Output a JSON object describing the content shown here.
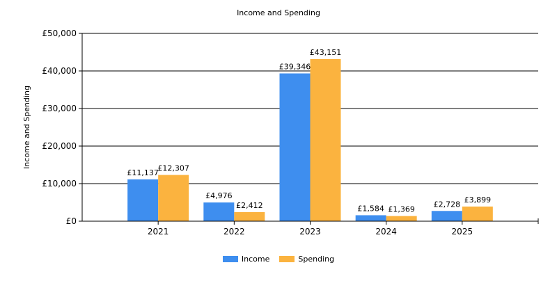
{
  "chart_data": {
    "type": "bar",
    "title": "Income and Spending",
    "ylabel": "Income and Spending",
    "xlabel": "",
    "categories": [
      "2021",
      "2022",
      "2023",
      "2024",
      "2025"
    ],
    "series": [
      {
        "name": "Income",
        "color": "#3e8eef",
        "values": [
          11137,
          4976,
          39346,
          1584,
          2728
        ],
        "labels": [
          "£11,137",
          "£4,976",
          "£39,346",
          "£1,584",
          "£2,728"
        ]
      },
      {
        "name": "Spending",
        "color": "#fbb33f",
        "values": [
          12307,
          2412,
          43151,
          1369,
          3899
        ],
        "labels": [
          "£12,307",
          "£2,412",
          "£43,151",
          "£1,369",
          "£3,899"
        ]
      }
    ],
    "ylim": [
      0,
      50000
    ],
    "yticks": [
      0,
      10000,
      20000,
      30000,
      40000,
      50000
    ],
    "ytick_labels": [
      "£0",
      "£10,000",
      "£20,000",
      "£30,000",
      "£40,000",
      "£50,000"
    ],
    "grid": true,
    "legend_position": "bottom-center"
  }
}
